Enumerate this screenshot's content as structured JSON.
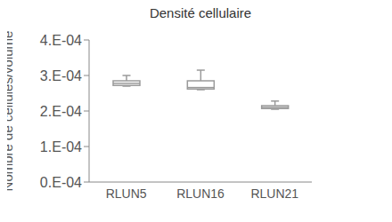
{
  "chart_data": {
    "type": "box",
    "title": "Densité cellulaire",
    "y_label": "Nombre de cellules/volume",
    "categories": [
      "RLUN5",
      "RLUN16",
      "RLUN21"
    ],
    "min": [
      0.00027,
      0.00026,
      0.000205
    ],
    "q1": [
      0.000272,
      0.000262,
      0.000207
    ],
    "median": [
      0.000278,
      0.000266,
      0.00021
    ],
    "q3": [
      0.000285,
      0.000285,
      0.000215
    ],
    "max": [
      0.0003,
      0.000315,
      0.000228
    ],
    "ylim": [
      0,
      0.0004
    ],
    "yticks": [
      {
        "value": 0,
        "label": "0.E-04"
      },
      {
        "value": 0.0001,
        "label": "1.E-04"
      },
      {
        "value": 0.0002,
        "label": "2.E-04"
      },
      {
        "value": 0.0003,
        "label": "3.E-04"
      },
      {
        "value": 0.0004,
        "label": "4.E-04"
      }
    ],
    "grid": false,
    "color": "#9a9a9a"
  }
}
